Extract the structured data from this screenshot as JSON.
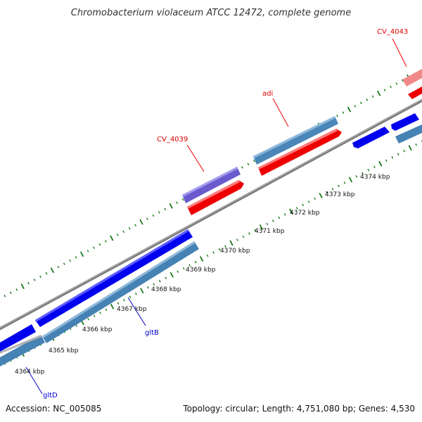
{
  "title": "Chromobacterium violaceum ATCC 12472, complete genome",
  "footer": {
    "accession": "Accession: NC_005085",
    "summary": "Topology: circular; Length: 4,751,080 bp; Genes: 4,530"
  },
  "colors": {
    "forward_cds": "#ff0000",
    "forward_cds_light": "#f07e7e",
    "reverse_cds": "#0000ee",
    "steel": "#4682b4",
    "purple": "#6a5acd",
    "backbone": "#808080",
    "ticks": "#1a7a1a",
    "label_forward": "#dd0000",
    "label_reverse": "#0000cc"
  },
  "scale": {
    "unit": "kbp",
    "ticks": [
      "4364 kbp",
      "4365 kbp",
      "4366 kbp",
      "4367 kbp",
      "4368 kbp",
      "4369 kbp",
      "4370 kbp",
      "4371 kbp",
      "4372 kbp",
      "4373 kbp",
      "4374 kbp"
    ]
  },
  "gene_labels": [
    {
      "name": "CV_4043",
      "strand": "forward"
    },
    {
      "name": "adi",
      "strand": "forward"
    },
    {
      "name": "CV_4039",
      "strand": "forward"
    },
    {
      "name": "gltB",
      "strand": "reverse"
    },
    {
      "name": "gltD",
      "strand": "reverse"
    }
  ]
}
